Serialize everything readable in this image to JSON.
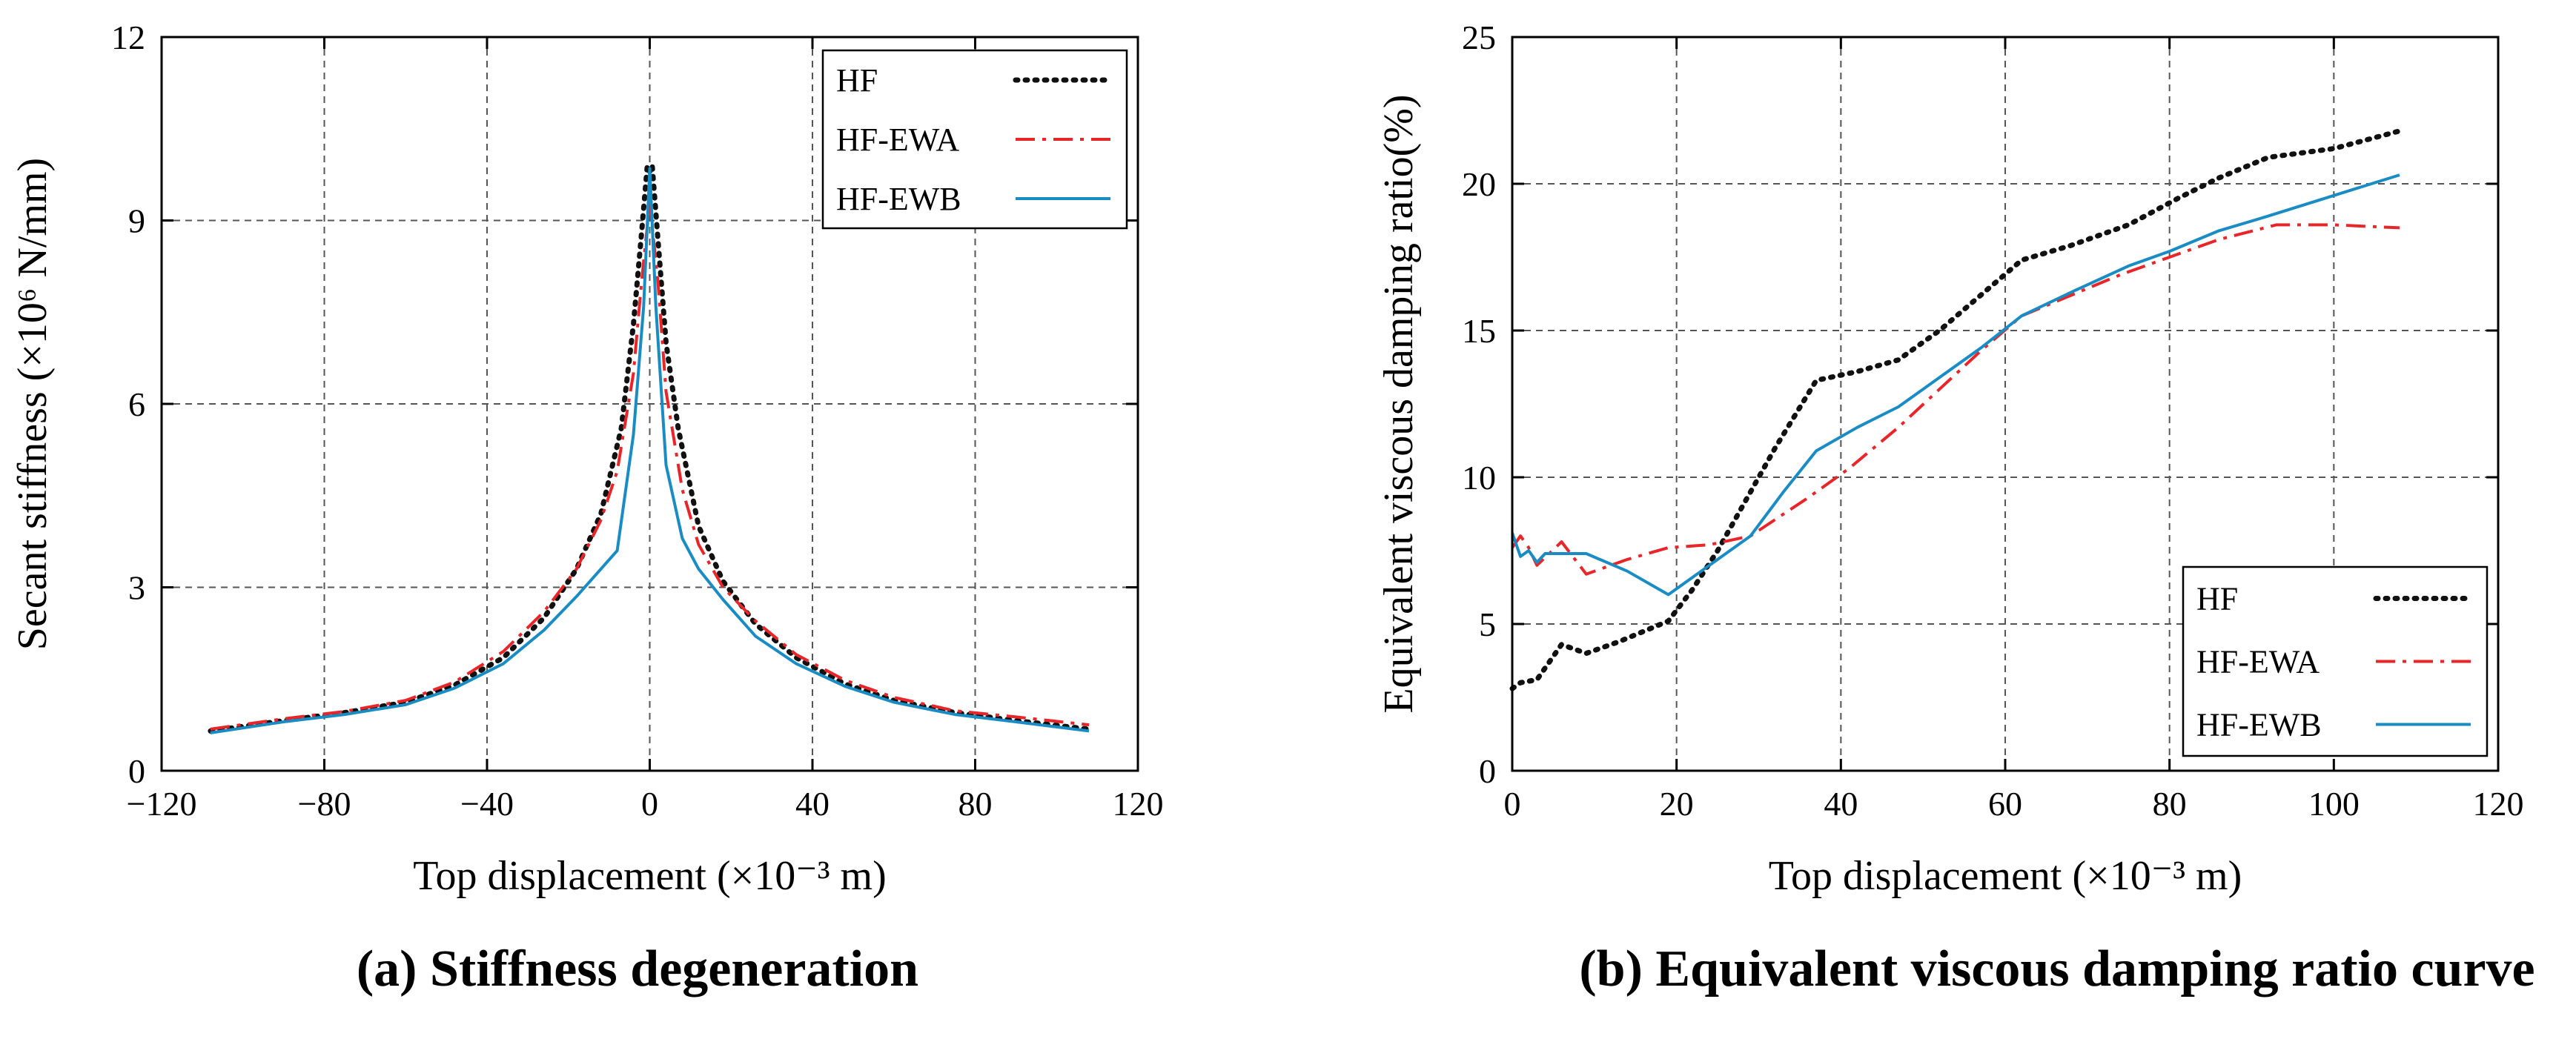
{
  "chart_data": [
    {
      "type": "line",
      "caption": "(a) Stiffness degeneration",
      "xlabel": "Top displacement (×10⁻³ m)",
      "ylabel": "Secant stiffness (×10⁶ N/mm)",
      "xlim": [
        -120,
        120
      ],
      "ylim": [
        0,
        12
      ],
      "xticks": [
        -120,
        -80,
        -40,
        0,
        40,
        80,
        120
      ],
      "xtick_labels": [
        "−120",
        "−80",
        "−40",
        "0",
        "40",
        "80",
        "120"
      ],
      "yticks": [
        0,
        3,
        6,
        9,
        12
      ],
      "ytick_labels": [
        "0",
        "3",
        "6",
        "9",
        "12"
      ],
      "grid": true,
      "legend_position": "top-right",
      "series": [
        {
          "name": "HF",
          "color": "#111111",
          "style": "dotted",
          "x": [
            -108,
            -90,
            -75,
            -60,
            -48,
            -36,
            -26,
            -18,
            -12,
            -7,
            -4,
            -2,
            -0.6,
            0,
            0.6,
            2,
            4,
            7,
            12,
            18,
            26,
            36,
            48,
            60,
            75,
            90,
            108
          ],
          "y": [
            0.65,
            0.82,
            0.95,
            1.12,
            1.4,
            1.85,
            2.5,
            3.3,
            4.2,
            5.6,
            7.3,
            8.8,
            9.9,
            9.8,
            9.9,
            8.7,
            7.0,
            5.6,
            4.0,
            3.1,
            2.4,
            1.85,
            1.42,
            1.15,
            0.95,
            0.82,
            0.68
          ]
        },
        {
          "name": "HF-EWA",
          "color": "#e8262a",
          "style": "dashdot",
          "x": [
            -108,
            -90,
            -75,
            -60,
            -48,
            -36,
            -26,
            -18,
            -12,
            -8,
            -4,
            -2,
            0,
            2,
            4,
            8,
            12,
            18,
            26,
            36,
            48,
            60,
            75,
            90,
            108
          ],
          "y": [
            0.68,
            0.85,
            0.97,
            1.15,
            1.45,
            1.95,
            2.6,
            3.3,
            4.1,
            4.9,
            6.5,
            8.0,
            9.3,
            8.0,
            6.2,
            4.6,
            3.7,
            3.0,
            2.45,
            1.9,
            1.48,
            1.2,
            0.98,
            0.88,
            0.75
          ]
        },
        {
          "name": "HF-EWB",
          "color": "#1a8cc4",
          "style": "solid",
          "x": [
            -108,
            -90,
            -75,
            -60,
            -48,
            -36,
            -26,
            -18,
            -12,
            -8,
            -4,
            -1.5,
            0,
            1.5,
            4,
            8,
            12,
            18,
            26,
            36,
            48,
            60,
            75,
            90,
            108
          ],
          "y": [
            0.62,
            0.8,
            0.92,
            1.08,
            1.35,
            1.75,
            2.3,
            2.85,
            3.3,
            3.6,
            5.5,
            7.6,
            9.85,
            7.6,
            5.0,
            3.8,
            3.3,
            2.8,
            2.2,
            1.75,
            1.38,
            1.12,
            0.92,
            0.8,
            0.65
          ]
        }
      ]
    },
    {
      "type": "line",
      "caption": "(b) Equivalent viscous damping ratio curve",
      "xlabel": "Top displacement (×10⁻³ m)",
      "ylabel": "Equivalent viscous damping ratio(%)",
      "xlim": [
        0,
        120
      ],
      "ylim": [
        0,
        25
      ],
      "xticks": [
        0,
        20,
        40,
        60,
        80,
        100,
        120
      ],
      "xtick_labels": [
        "0",
        "20",
        "40",
        "60",
        "80",
        "100",
        "120"
      ],
      "yticks": [
        0,
        5,
        10,
        15,
        20,
        25
      ],
      "ytick_labels": [
        "0",
        "5",
        "10",
        "15",
        "20",
        "25"
      ],
      "grid": true,
      "legend_position": "bottom-right",
      "series": [
        {
          "name": "HF",
          "color": "#111111",
          "style": "dotted",
          "x": [
            0,
            1,
            3,
            6,
            9,
            13,
            19,
            22,
            25,
            28,
            32,
            37,
            42,
            47,
            52,
            57,
            62,
            68,
            75,
            81,
            86,
            92,
            100,
            108
          ],
          "y": [
            2.8,
            3.0,
            3.1,
            4.3,
            4.0,
            4.4,
            5.1,
            6.2,
            7.5,
            9.0,
            11.0,
            13.3,
            13.6,
            14.0,
            15.0,
            16.2,
            17.4,
            17.9,
            18.6,
            19.5,
            20.2,
            20.9,
            21.2,
            21.8
          ]
        },
        {
          "name": "HF-EWA",
          "color": "#e8262a",
          "style": "dashdot",
          "x": [
            0,
            1,
            2,
            3,
            6,
            9,
            14,
            19,
            24,
            29,
            36,
            41,
            47,
            52,
            57,
            62,
            68,
            74,
            80,
            86,
            93,
            100,
            108
          ],
          "y": [
            7.6,
            8.0,
            7.6,
            7.0,
            7.8,
            6.7,
            7.2,
            7.6,
            7.7,
            8.0,
            9.3,
            10.3,
            11.7,
            13.0,
            14.3,
            15.5,
            16.2,
            16.9,
            17.5,
            18.1,
            18.6,
            18.6,
            18.5
          ]
        },
        {
          "name": "HF-EWB",
          "color": "#1a8cc4",
          "style": "solid",
          "x": [
            0,
            1,
            2,
            3,
            4,
            9,
            14,
            19,
            24,
            29,
            33,
            37,
            42,
            47,
            52,
            57,
            62,
            68,
            75,
            80,
            86,
            92,
            100,
            108
          ],
          "y": [
            8.1,
            7.3,
            7.5,
            7.1,
            7.4,
            7.4,
            6.8,
            6.0,
            7.0,
            8.0,
            9.5,
            10.9,
            11.7,
            12.4,
            13.4,
            14.4,
            15.5,
            16.3,
            17.2,
            17.7,
            18.4,
            18.9,
            19.6,
            20.3
          ]
        }
      ]
    }
  ]
}
